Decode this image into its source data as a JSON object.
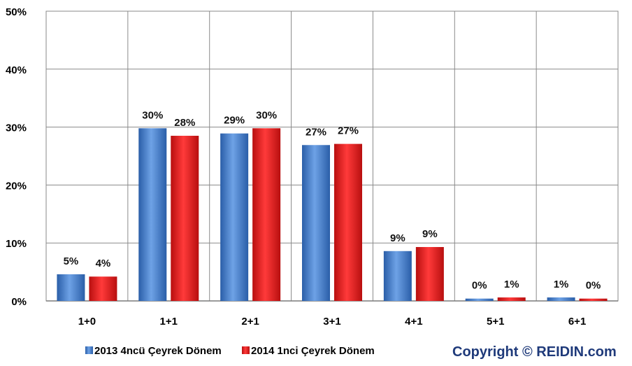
{
  "chart_data": {
    "type": "bar",
    "categories": [
      "1+0",
      "1+1",
      "2+1",
      "3+1",
      "4+1",
      "5+1",
      "6+1"
    ],
    "series": [
      {
        "name": "2013 4ncü Çeyrek Dönem",
        "color": "#3a78c8",
        "values": [
          4.6,
          29.8,
          28.9,
          26.9,
          8.6,
          0.4,
          0.6
        ],
        "labels": [
          "5%",
          "30%",
          "29%",
          "27%",
          "9%",
          "0%",
          "1%"
        ]
      },
      {
        "name": "2014 1nci Çeyrek Dönem",
        "color": "#e31b1b",
        "values": [
          4.2,
          28.5,
          29.8,
          27.1,
          9.3,
          0.6,
          0.4
        ],
        "labels": [
          "4%",
          "28%",
          "30%",
          "27%",
          "9%",
          "1%",
          "0%"
        ]
      }
    ],
    "ylim": [
      0,
      50
    ],
    "yticks": [
      0,
      10,
      20,
      30,
      40,
      50
    ],
    "ytick_labels": [
      "0%",
      "10%",
      "20%",
      "30%",
      "40%",
      "50%"
    ],
    "grid": true,
    "legend_position": "bottom-left"
  },
  "copyright": "Copyright © REIDIN.com"
}
